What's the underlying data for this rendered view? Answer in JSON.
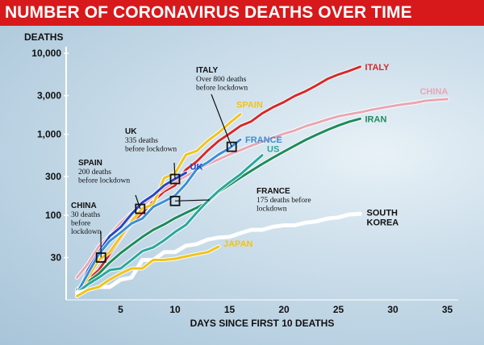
{
  "title": "NUMBER OF CORONAVIRUS DEATHS OVER TIME",
  "chart_data": {
    "type": "line",
    "xlabel": "DAYS SINCE FIRST 10 DEATHS",
    "ylabel": "DEATHS",
    "yscale": "log",
    "xlim": [
      0,
      36
    ],
    "ylim": [
      9,
      11000
    ],
    "xticks": [
      5,
      10,
      15,
      20,
      25,
      30,
      35
    ],
    "yticks": [
      30,
      100,
      300,
      1000,
      3000,
      10000
    ],
    "ytick_labels": [
      "30",
      "100",
      "300",
      "1,000",
      "3,000",
      "10,000"
    ],
    "grid": false,
    "series": [
      {
        "name": "ITALY",
        "color": "#d42a2a",
        "points": [
          [
            1,
            12
          ],
          [
            3,
            21
          ],
          [
            5,
            52
          ],
          [
            6,
            80
          ],
          [
            7,
            107
          ],
          [
            8,
            148
          ],
          [
            9,
            197
          ],
          [
            10,
            233
          ],
          [
            11,
            366
          ],
          [
            12,
            463
          ],
          [
            13,
            631
          ],
          [
            14,
            827
          ],
          [
            15,
            1016
          ],
          [
            16,
            1266
          ],
          [
            17,
            1441
          ],
          [
            18,
            1809
          ],
          [
            19,
            2158
          ],
          [
            20,
            2503
          ],
          [
            21,
            2978
          ],
          [
            22,
            3405
          ],
          [
            23,
            4032
          ],
          [
            24,
            4825
          ],
          [
            25,
            5476
          ],
          [
            26,
            6077
          ],
          [
            27,
            6820
          ]
        ]
      },
      {
        "name": "CHINA",
        "color": "#e8a7b3",
        "points": [
          [
            1,
            17
          ],
          [
            2,
            25
          ],
          [
            3,
            41
          ],
          [
            4,
            56
          ],
          [
            5,
            80
          ],
          [
            6,
            106
          ],
          [
            7,
            132
          ],
          [
            8,
            170
          ],
          [
            9,
            213
          ],
          [
            10,
            259
          ],
          [
            11,
            304
          ],
          [
            12,
            361
          ],
          [
            13,
            425
          ],
          [
            14,
            490
          ],
          [
            15,
            563
          ],
          [
            16,
            636
          ],
          [
            17,
            722
          ],
          [
            18,
            811
          ],
          [
            19,
            908
          ],
          [
            20,
            1016
          ],
          [
            21,
            1113
          ],
          [
            22,
            1259
          ],
          [
            23,
            1380
          ],
          [
            24,
            1523
          ],
          [
            25,
            1665
          ],
          [
            26,
            1770
          ],
          [
            27,
            1868
          ],
          [
            28,
            2004
          ],
          [
            29,
            2118
          ],
          [
            30,
            2236
          ],
          [
            31,
            2345
          ],
          [
            32,
            2442
          ],
          [
            33,
            2592
          ],
          [
            34,
            2663
          ],
          [
            35,
            2715
          ]
        ]
      },
      {
        "name": "IRAN",
        "color": "#1f8a5b",
        "points": [
          [
            1,
            12
          ],
          [
            2,
            15
          ],
          [
            3,
            19
          ],
          [
            4,
            26
          ],
          [
            5,
            34
          ],
          [
            6,
            43
          ],
          [
            7,
            54
          ],
          [
            8,
            66
          ],
          [
            9,
            77
          ],
          [
            10,
            92
          ],
          [
            11,
            107
          ],
          [
            12,
            124
          ],
          [
            13,
            145
          ],
          [
            14,
            194
          ],
          [
            15,
            237
          ],
          [
            16,
            291
          ],
          [
            17,
            354
          ],
          [
            18,
            429
          ],
          [
            19,
            514
          ],
          [
            20,
            611
          ],
          [
            21,
            724
          ],
          [
            22,
            853
          ],
          [
            23,
            988
          ],
          [
            24,
            1135
          ],
          [
            25,
            1284
          ],
          [
            26,
            1433
          ],
          [
            27,
            1556
          ]
        ]
      },
      {
        "name": "SPAIN",
        "color": "#f0c419",
        "points": [
          [
            1,
            10
          ],
          [
            2,
            17
          ],
          [
            3,
            28
          ],
          [
            4,
            35
          ],
          [
            5,
            54
          ],
          [
            6,
            84
          ],
          [
            7,
            121
          ],
          [
            8,
            136
          ],
          [
            9,
            288
          ],
          [
            10,
            331
          ],
          [
            11,
            558
          ],
          [
            12,
            623
          ],
          [
            13,
            830
          ],
          [
            14,
            1043
          ],
          [
            15,
            1375
          ],
          [
            16,
            1772
          ]
        ]
      },
      {
        "name": "UK",
        "color": "#2547c7",
        "points": [
          [
            1,
            10
          ],
          [
            2,
            21
          ],
          [
            3,
            35
          ],
          [
            4,
            55
          ],
          [
            5,
            71
          ],
          [
            6,
            103
          ],
          [
            7,
            144
          ],
          [
            8,
            177
          ],
          [
            9,
            233
          ],
          [
            10,
            281
          ],
          [
            11,
            335
          ]
        ]
      },
      {
        "name": "FRANCE",
        "color": "#3b8ed6",
        "points": [
          [
            1,
            11
          ],
          [
            2,
            19
          ],
          [
            3,
            33
          ],
          [
            4,
            48
          ],
          [
            5,
            61
          ],
          [
            6,
            79
          ],
          [
            7,
            91
          ],
          [
            8,
            127
          ],
          [
            9,
            148
          ],
          [
            10,
            175
          ],
          [
            11,
            244
          ],
          [
            12,
            372
          ],
          [
            13,
            450
          ],
          [
            14,
            562
          ],
          [
            15,
            674
          ],
          [
            16,
            860
          ]
        ]
      },
      {
        "name": "US",
        "color": "#2aa79b",
        "points": [
          [
            1,
            11
          ],
          [
            2,
            14
          ],
          [
            3,
            17
          ],
          [
            4,
            21
          ],
          [
            5,
            22
          ],
          [
            6,
            28
          ],
          [
            7,
            36
          ],
          [
            8,
            40
          ],
          [
            9,
            49
          ],
          [
            10,
            62
          ],
          [
            11,
            76
          ],
          [
            12,
            108
          ],
          [
            13,
            150
          ],
          [
            14,
            200
          ],
          [
            15,
            255
          ],
          [
            16,
            320
          ],
          [
            17,
            420
          ],
          [
            18,
            550
          ]
        ]
      },
      {
        "name": "SOUTH KOREA",
        "color": "#ffffff",
        "points": [
          [
            1,
            11
          ],
          [
            2,
            12
          ],
          [
            3,
            13
          ],
          [
            4,
            13
          ],
          [
            5,
            16
          ],
          [
            6,
            17
          ],
          [
            7,
            28
          ],
          [
            8,
            28
          ],
          [
            9,
            35
          ],
          [
            10,
            35
          ],
          [
            11,
            42
          ],
          [
            12,
            44
          ],
          [
            13,
            50
          ],
          [
            14,
            53
          ],
          [
            15,
            54
          ],
          [
            16,
            60
          ],
          [
            17,
            66
          ],
          [
            18,
            66
          ],
          [
            19,
            72
          ],
          [
            20,
            75
          ],
          [
            21,
            75
          ],
          [
            22,
            81
          ],
          [
            23,
            84
          ],
          [
            24,
            91
          ],
          [
            25,
            94
          ],
          [
            26,
            102
          ],
          [
            27,
            104
          ]
        ]
      },
      {
        "name": "JAPAN",
        "color": "#f0c419",
        "points": [
          [
            1,
            10
          ],
          [
            2,
            12
          ],
          [
            3,
            13
          ],
          [
            4,
            16
          ],
          [
            5,
            19
          ],
          [
            6,
            22
          ],
          [
            7,
            22
          ],
          [
            8,
            28
          ],
          [
            9,
            28
          ],
          [
            10,
            29
          ],
          [
            11,
            31
          ],
          [
            12,
            33
          ],
          [
            13,
            35
          ],
          [
            14,
            41
          ]
        ]
      }
    ],
    "annotations": [
      {
        "country": "CHINA",
        "lines": [
          "30 deaths",
          "before",
          "lockdown"
        ],
        "x": 3.2,
        "y": 30
      },
      {
        "country": "SPAIN",
        "lines": [
          "200 deaths",
          "before lockdown"
        ],
        "x": 6.8,
        "y": 120
      },
      {
        "country": "UK",
        "lines": [
          "335 deaths",
          "before lockdown"
        ],
        "x": 10,
        "y": 280
      },
      {
        "country": "FRANCE",
        "lines": [
          "175 deaths before",
          "lockdown"
        ],
        "x": 10,
        "y": 150
      },
      {
        "country": "ITALY",
        "lines": [
          "Over 800 deaths",
          "before lockdown"
        ],
        "x": 15.2,
        "y": 700
      }
    ]
  }
}
